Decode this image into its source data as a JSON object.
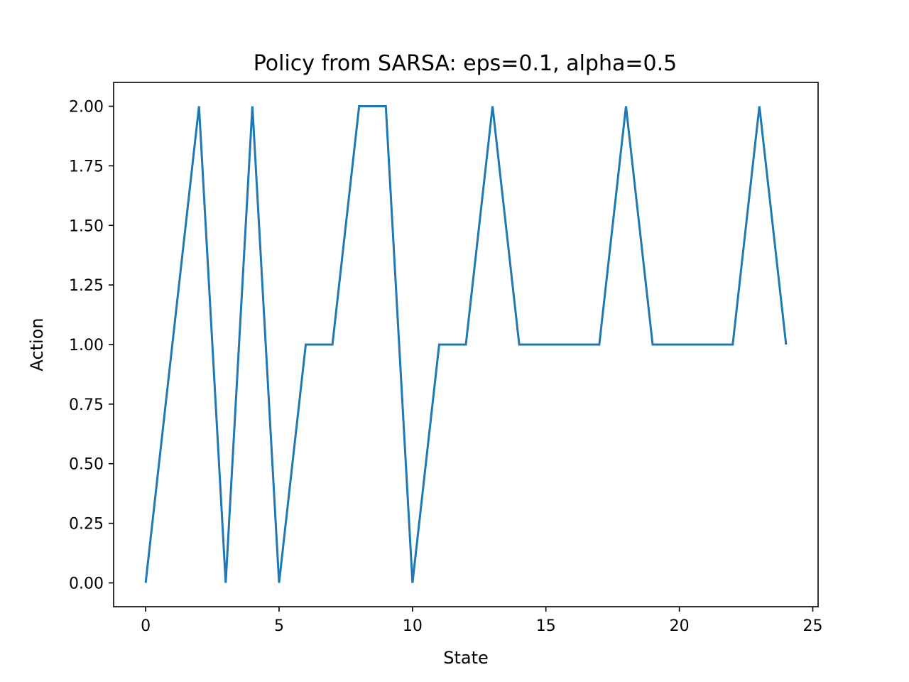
{
  "chart_data": {
    "type": "line",
    "title": "Policy from SARSA: eps=0.1, alpha=0.5",
    "xlabel": "State",
    "ylabel": "Action",
    "xlim": [
      -1.2,
      25.2
    ],
    "ylim": [
      -0.1,
      2.1
    ],
    "xticks": [
      0,
      5,
      10,
      15,
      20,
      25
    ],
    "xtick_labels": [
      "0",
      "5",
      "10",
      "15",
      "20",
      "25"
    ],
    "yticks": [
      0,
      0.25,
      0.5,
      0.75,
      1.0,
      1.25,
      1.5,
      1.75,
      2.0
    ],
    "ytick_labels": [
      "0.00",
      "0.25",
      "0.50",
      "0.75",
      "1.00",
      "1.25",
      "1.50",
      "1.75",
      "2.00"
    ],
    "grid": false,
    "line_color": "#1f77b4",
    "x": [
      0,
      1,
      2,
      3,
      4,
      5,
      6,
      7,
      8,
      9,
      10,
      11,
      12,
      13,
      14,
      15,
      16,
      17,
      18,
      19,
      20,
      21,
      22,
      23,
      24
    ],
    "y": [
      0,
      1,
      2,
      0,
      2,
      0,
      1,
      1,
      2,
      2,
      0,
      1,
      1,
      2,
      1,
      1,
      1,
      1,
      2,
      1,
      1,
      1,
      1,
      2,
      1
    ]
  }
}
